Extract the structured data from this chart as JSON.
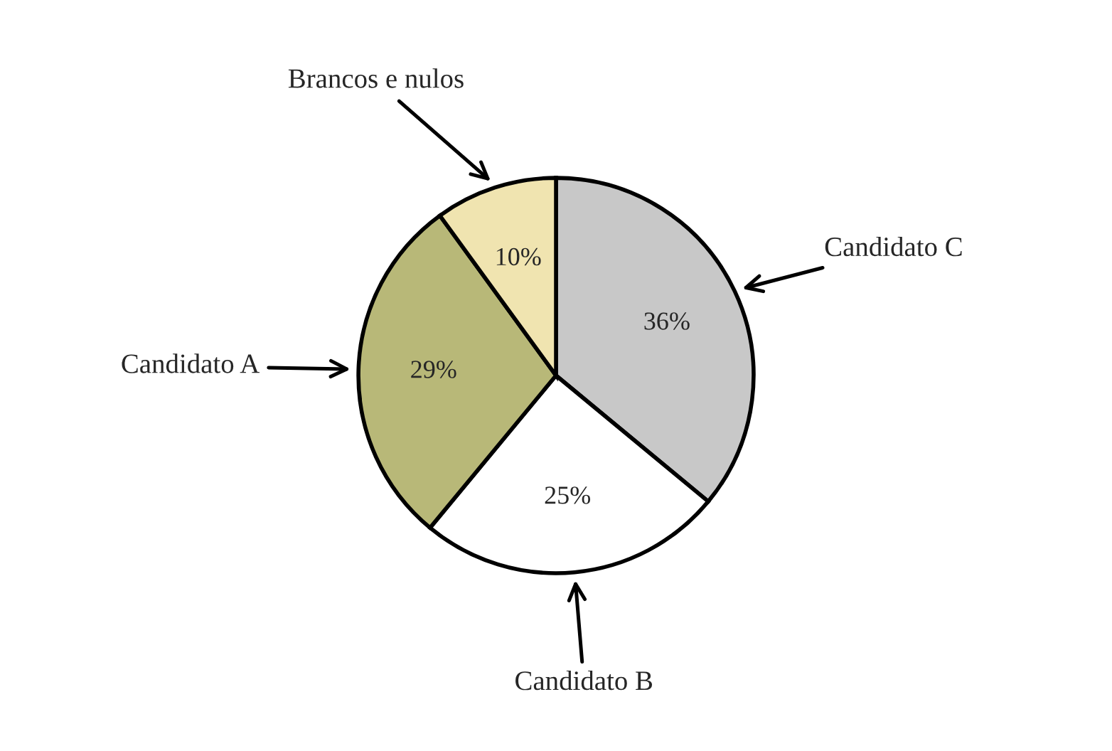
{
  "chart_data": {
    "type": "pie",
    "categories": [
      "Candidato C",
      "Candidato B",
      "Candidato A",
      "Brancos e nulos"
    ],
    "values": [
      36,
      25,
      29,
      10
    ],
    "colors": [
      "#c8c8c8",
      "#ffffff",
      "#b8b878",
      "#f0e4b0"
    ],
    "value_labels": [
      "36%",
      "25%",
      "29%",
      "10%"
    ]
  }
}
